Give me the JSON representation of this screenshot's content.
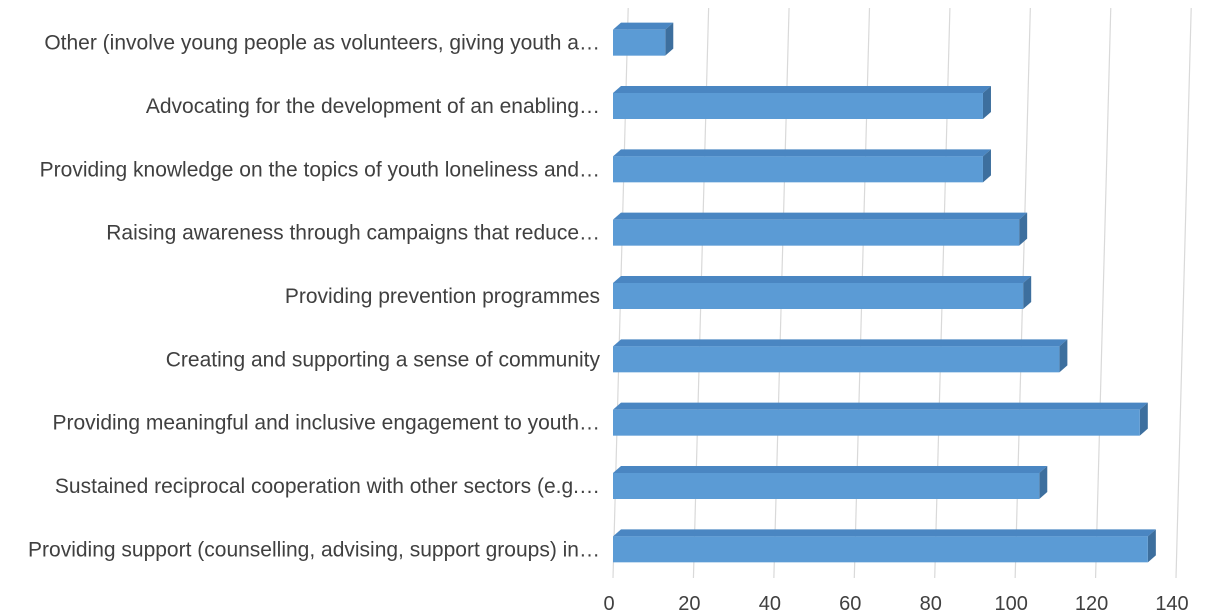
{
  "chart_data": {
    "type": "bar",
    "orientation": "horizontal",
    "style": "3d",
    "categories": [
      "Other (involve young people as volunteers, giving youth a…",
      "Advocating for the development of an enabling…",
      "Providing knowledge on the topics of youth loneliness and…",
      "Raising awareness through campaigns that reduce…",
      "Providing prevention programmes",
      "Creating and supporting a sense of community",
      "Providing meaningful and inclusive engagement to youth…",
      "Sustained reciprocal cooperation with other sectors (e.g.…",
      "Providing support (counselling, advising, support groups) in…"
    ],
    "values": [
      13,
      92,
      92,
      101,
      102,
      111,
      131,
      106,
      133
    ],
    "xlim": [
      0,
      140
    ],
    "xticks": [
      "0",
      "20",
      "40",
      "60",
      "80",
      "100",
      "120",
      "140"
    ],
    "grid": true,
    "legend": "none",
    "colors": {
      "bar_front": "#5b9bd5",
      "bar_top": "#4a86c2",
      "bar_side": "#3d6f9e",
      "grid": "#d9d9d9"
    }
  }
}
